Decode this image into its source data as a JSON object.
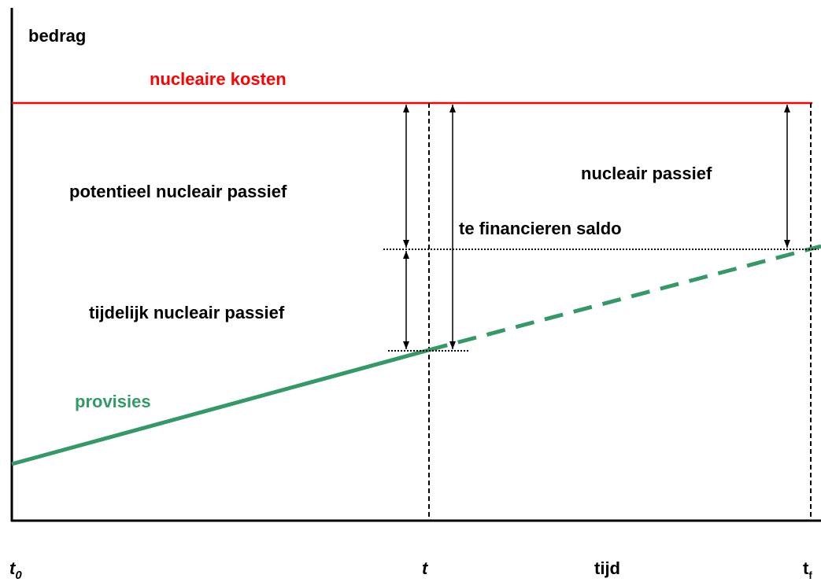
{
  "y_axis_label": "bedrag",
  "x_axis_label": "tijd",
  "curves": {
    "costs": "nucleaire kosten",
    "provisions": "provisies"
  },
  "intervals": {
    "potential": "potentieel nucleair passief",
    "temporary": "tijdelijk nucleair passief",
    "balance": "te financieren saldo",
    "final": "nucleair passief"
  },
  "time_marks": {
    "start": {
      "main": "t",
      "sub": "0"
    },
    "now": "t",
    "end": {
      "main": "t",
      "sub": "f"
    }
  }
}
